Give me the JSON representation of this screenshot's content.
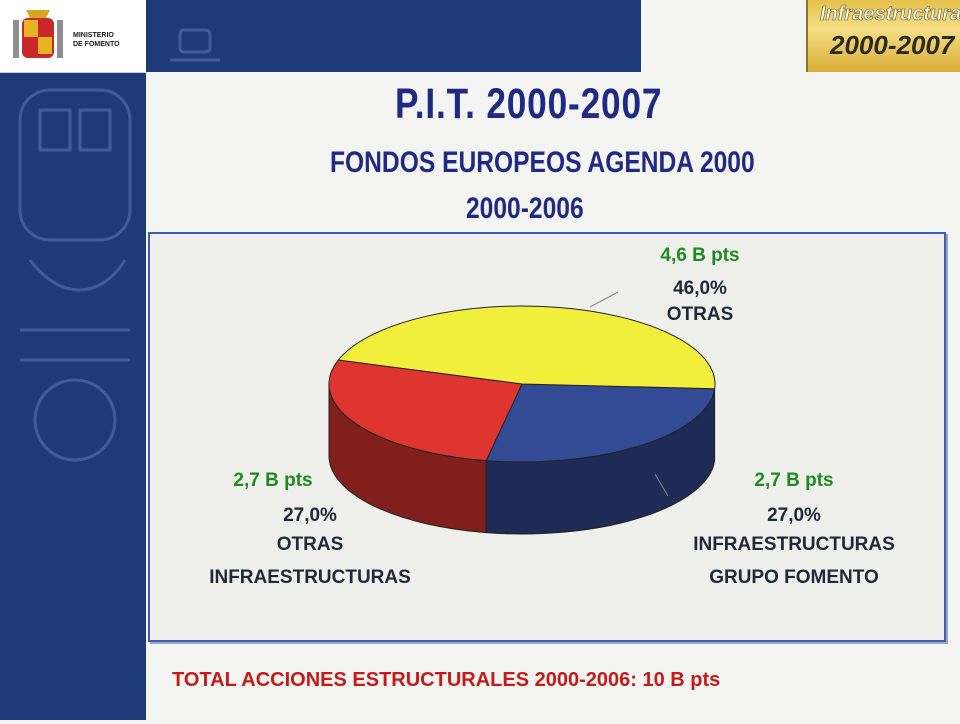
{
  "header": {
    "ministry_lines": [
      "MINISTERIO",
      "DE FOMENTO"
    ],
    "logo_line1": "Infraestructuras",
    "logo_line2": "2000-2007"
  },
  "title": "P.I.T. 2000-2007",
  "subtitle1": "FONDOS EUROPEOS AGENDA 2000",
  "subtitle2": "2000-2006",
  "footer": "TOTAL ACCIONES ESTRUCTURALES 2000-2006: 10 B pts",
  "colors": {
    "otras": "#f2ef3c",
    "infra_fomento": "#334a94",
    "otras_infra": "#de3530",
    "title": "#1f2a86",
    "value_label": "#1f8a1f",
    "footer": "#c41a1a"
  },
  "chart_data": {
    "type": "pie",
    "title": "",
    "slices": [
      {
        "key": "otras",
        "label_lines": [
          "OTRAS"
        ],
        "value_text": "4,6 B pts",
        "percent_text": "46,0%",
        "value": 4.6,
        "percent": 46.0
      },
      {
        "key": "infra_fomento",
        "label_lines": [
          "INFRAESTRUCTURAS",
          "GRUPO FOMENTO"
        ],
        "value_text": "2,7 B pts",
        "percent_text": "27,0%",
        "value": 2.7,
        "percent": 27.0
      },
      {
        "key": "otras_infra",
        "label_lines": [
          "OTRAS",
          "INFRAESTRUCTURAS"
        ],
        "value_text": "2,7 B pts",
        "percent_text": "27,0%",
        "value": 2.7,
        "percent": 27.0
      }
    ]
  }
}
